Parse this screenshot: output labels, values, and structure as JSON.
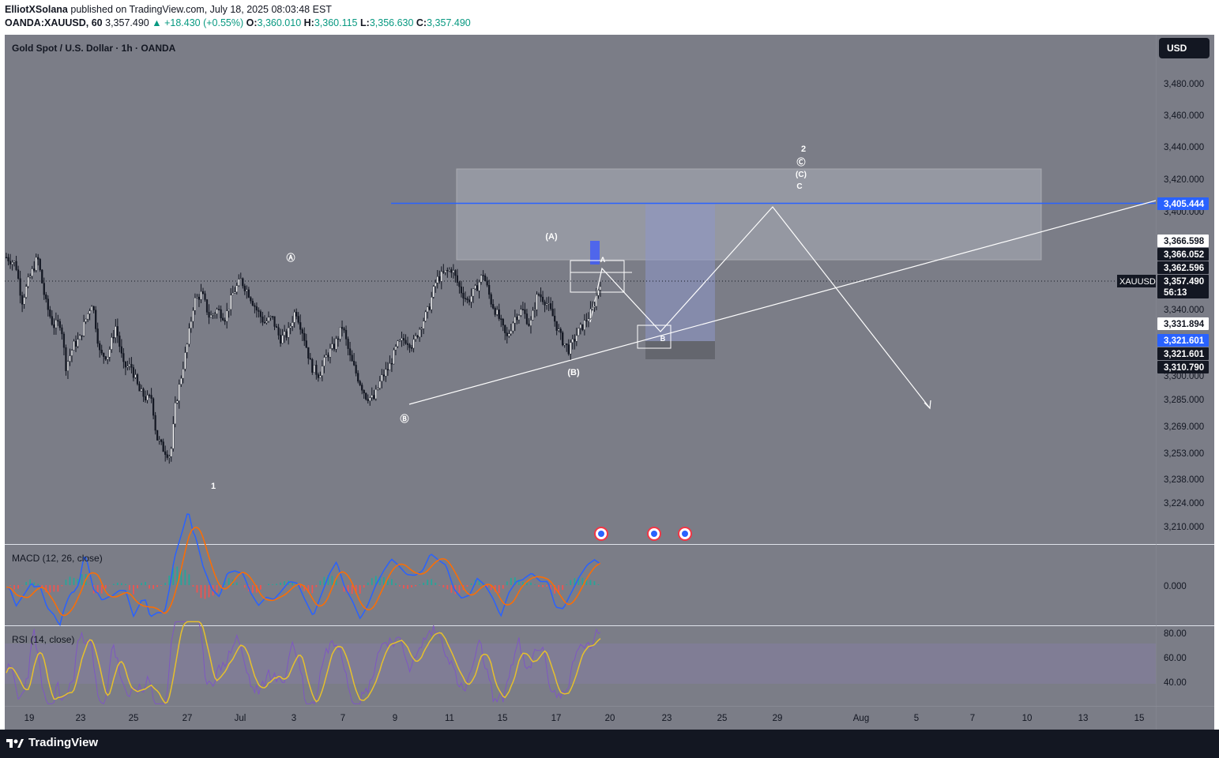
{
  "header": {
    "author": "ElliotXSolana",
    "published_text": "published on TradingView.com, July 18, 2025 08:03:48 EST",
    "symbol": "OANDA:XAUUSD, 60",
    "last_price": "3,357.490",
    "change": "+18.430 (+0.55%)",
    "open_label": "O:",
    "open": "3,360.010",
    "high_label": "H:",
    "high": "3,360.115",
    "low_label": "L:",
    "low": "3,356.630",
    "close_label": "C:",
    "close": "3,357.490"
  },
  "chart_title": "Gold Spot / U.S. Dollar · 1h · OANDA",
  "currency_button": "USD",
  "footer": {
    "brand": "TradingView"
  },
  "colors": {
    "background": "#7b7d87",
    "candle": "#131722",
    "accent_blue": "#2962ff",
    "macd_line": "#2962ff",
    "signal_line": "#ff6d00",
    "rsi_line": "#e6c02c",
    "white": "#ffffff"
  },
  "chart_data": {
    "type": "candlestick",
    "title": "Gold Spot / U.S. Dollar · 1h · OANDA",
    "x_ticks": [
      "19",
      "23",
      "25",
      "27",
      "Jul",
      "3",
      "7",
      "9",
      "11",
      "15",
      "17",
      "20",
      "23",
      "25",
      "29",
      "Aug",
      "5",
      "7",
      "10",
      "13",
      "15"
    ],
    "y_ticks": [
      "3,480.000",
      "3,460.000",
      "3,440.000",
      "3,420.000",
      "3,400.000",
      "3,340.000",
      "3,300.000",
      "3,285.000",
      "3,269.000",
      "3,253.000",
      "3,238.000",
      "3,224.000",
      "3,210.000"
    ],
    "price_tags": [
      {
        "label": "3,405.444",
        "style": "blue"
      },
      {
        "label": "3,366.598",
        "style": "white"
      },
      {
        "label": "3,366.052",
        "style": "dark"
      },
      {
        "label": "3,362.596",
        "style": "dark"
      },
      {
        "label": "3,357.490",
        "style": "dark"
      },
      {
        "label": "56:13",
        "style": "dark"
      },
      {
        "label": "3,331.894",
        "style": "white"
      },
      {
        "label": "3,321.601",
        "style": "blue"
      },
      {
        "label": "3,321.601",
        "style": "dark"
      },
      {
        "label": "3,310.790",
        "style": "dark"
      }
    ],
    "symbol_tag": "XAUUSD",
    "price_path": [
      [
        0,
        3372
      ],
      [
        0.06,
        3368
      ],
      [
        0.1,
        3345
      ],
      [
        0.14,
        3357
      ],
      [
        0.2,
        3372
      ],
      [
        0.25,
        3345
      ],
      [
        0.3,
        3330
      ],
      [
        0.35,
        3332
      ],
      [
        0.38,
        3305
      ],
      [
        0.43,
        3318
      ],
      [
        0.47,
        3322
      ],
      [
        0.5,
        3332
      ],
      [
        0.55,
        3345
      ],
      [
        0.6,
        3312
      ],
      [
        0.65,
        3312
      ],
      [
        0.7,
        3330
      ],
      [
        0.75,
        3305
      ],
      [
        0.8,
        3305
      ],
      [
        0.85,
        3290
      ],
      [
        0.9,
        3285
      ],
      [
        0.93,
        3286
      ],
      [
        0.96,
        3262
      ],
      [
        1.0,
        3255
      ],
      [
        1.05,
        3250
      ],
      [
        1.08,
        3280
      ],
      [
        1.12,
        3300
      ],
      [
        1.16,
        3320
      ],
      [
        1.2,
        3345
      ],
      [
        1.25,
        3350
      ],
      [
        1.3,
        3335
      ],
      [
        1.35,
        3340
      ],
      [
        1.4,
        3335
      ],
      [
        1.45,
        3350
      ],
      [
        1.5,
        3358
      ],
      [
        1.55,
        3350
      ],
      [
        1.6,
        3340
      ],
      [
        1.65,
        3332
      ],
      [
        1.7,
        3335
      ],
      [
        1.75,
        3322
      ],
      [
        1.8,
        3325
      ],
      [
        1.85,
        3340
      ],
      [
        1.9,
        3325
      ],
      [
        1.95,
        3305
      ],
      [
        2.0,
        3300
      ],
      [
        2.05,
        3312
      ],
      [
        2.1,
        3318
      ],
      [
        2.15,
        3330
      ],
      [
        2.2,
        3310
      ],
      [
        2.25,
        3298
      ],
      [
        2.3,
        3287
      ],
      [
        2.35,
        3285
      ],
      [
        2.4,
        3298
      ],
      [
        2.45,
        3305
      ],
      [
        2.5,
        3318
      ],
      [
        2.55,
        3322
      ],
      [
        2.6,
        3318
      ],
      [
        2.65,
        3330
      ],
      [
        2.7,
        3340
      ],
      [
        2.75,
        3358
      ],
      [
        2.8,
        3362
      ],
      [
        2.85,
        3365
      ],
      [
        2.9,
        3353
      ],
      [
        2.95,
        3345
      ],
      [
        3.0,
        3352
      ],
      [
        3.05,
        3362
      ],
      [
        3.1,
        3345
      ],
      [
        3.15,
        3335
      ],
      [
        3.2,
        3322
      ],
      [
        3.25,
        3335
      ],
      [
        3.3,
        3340
      ],
      [
        3.35,
        3330
      ],
      [
        3.4,
        3350
      ],
      [
        3.45,
        3345
      ],
      [
        3.5,
        3335
      ],
      [
        3.55,
        3322
      ],
      [
        3.6,
        3315
      ],
      [
        3.65,
        3325
      ],
      [
        3.7,
        3332
      ],
      [
        3.75,
        3340
      ],
      [
        3.8,
        3357
      ]
    ],
    "indicators": [
      {
        "name": "MACD (12, 26, close)",
        "y_tick": "0.000"
      },
      {
        "name": "RSI (14, close)",
        "y_ticks": [
          "80.00",
          "60.00",
          "40.00"
        ]
      }
    ],
    "wave_labels": [
      "Ⓐ",
      "Ⓑ",
      "1",
      "(A)",
      "(B)",
      "A",
      "B",
      "2",
      "Ⓒ",
      "(C)",
      "C"
    ],
    "legend": "none",
    "grid": false
  }
}
